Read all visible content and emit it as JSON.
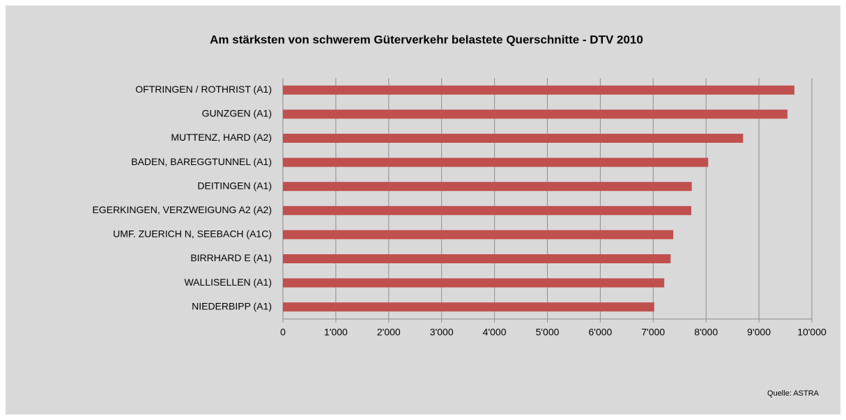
{
  "chart_data": {
    "type": "bar",
    "orientation": "horizontal",
    "title": "Am stärksten von schwerem Güterverkehr belastete Querschnitte - DTV 2010",
    "source": "Quelle: ASTRA",
    "categories": [
      "OFTRINGEN / ROTHRIST (A1)",
      "GUNZGEN (A1)",
      "MUTTENZ, HARD (A2)",
      "BADEN, BAREGGTUNNEL (A1)",
      "DEITINGEN (A1)",
      "EGERKINGEN, VERZWEIGUNG A2 (A2)",
      "UMF. ZUERICH N, SEEBACH (A1C)",
      "BIRRHARD E (A1)",
      "WALLISELLEN (A1)",
      "NIEDERBIPP (A1)"
    ],
    "values": [
      9670,
      9540,
      8700,
      8040,
      7730,
      7720,
      7380,
      7330,
      7210,
      7020
    ],
    "color": "#c0504d",
    "xlim": [
      0,
      10000
    ],
    "xticks": [
      0,
      {
        "value": 1000,
        "label": "1'000"
      },
      {
        "value": 2000,
        "label": "2'000"
      },
      {
        "value": 3000,
        "label": "3'000"
      },
      {
        "value": 4000,
        "label": "4'000"
      },
      {
        "value": 5000,
        "label": "5'000"
      },
      {
        "value": 6000,
        "label": "6'000"
      },
      {
        "value": 7000,
        "label": "7'000"
      },
      {
        "value": 8000,
        "label": "8'000"
      },
      {
        "value": 9000,
        "label": "9'000"
      },
      {
        "value": 10000,
        "label": "10'000"
      }
    ],
    "grid": true
  }
}
